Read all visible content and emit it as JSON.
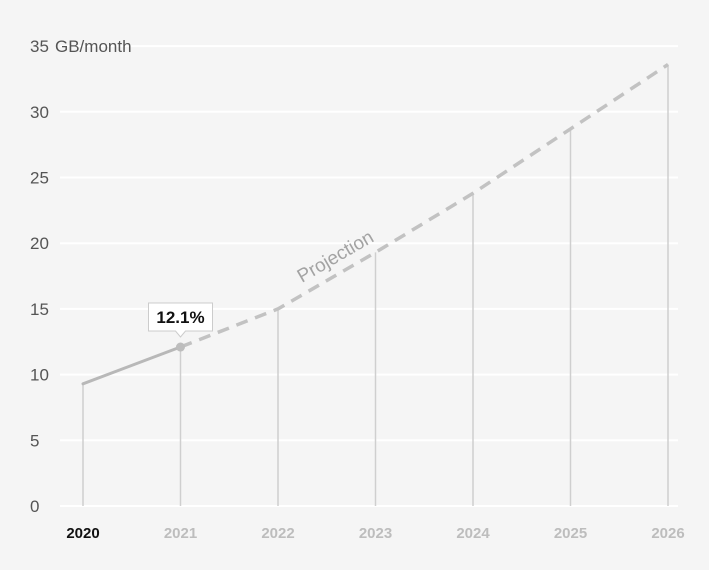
{
  "chart_data": {
    "type": "line",
    "unit_label": "GB/month",
    "x": [
      "2020",
      "2021",
      "2022",
      "2023",
      "2024",
      "2025",
      "2026"
    ],
    "series": [
      {
        "values": [
          9.3,
          12.1,
          null,
          null,
          null,
          null,
          null
        ]
      },
      {
        "values": [
          null,
          12.1,
          15.0,
          19.3,
          23.8,
          28.7,
          33.6
        ]
      }
    ],
    "projection_label": "Projection",
    "callout": {
      "x": "2021",
      "value": 12.1,
      "text": "12.1%"
    },
    "ylim": [
      0,
      35
    ],
    "yticks": [
      0,
      5,
      10,
      15,
      20,
      25,
      30,
      35
    ],
    "highlighted_x": "2020",
    "grid": true,
    "colors": {
      "actual": "#b8b8b8",
      "projection": "#c2c2c2",
      "grid": "#ffffff",
      "background": "#f5f5f5"
    }
  }
}
